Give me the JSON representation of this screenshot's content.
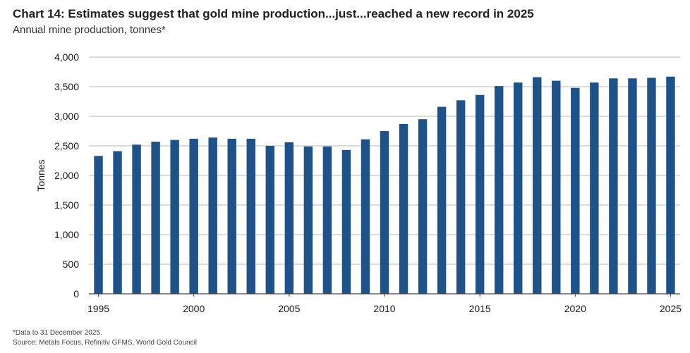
{
  "header": {
    "title": "Chart 14: Estimates suggest that gold mine production...just...reached a new record in 2025",
    "subtitle": "Annual mine production, tonnes*"
  },
  "footer": {
    "note": "*Data to 31 December 2025.",
    "source": "Source: Metals Focus, Refinitiv GFMS, World Gold Council"
  },
  "colors": {
    "bar": "#1f5288",
    "grid": "#c8c8c8",
    "axis": "#444444",
    "text": "#1a1a1a"
  },
  "chart_data": {
    "type": "bar",
    "title": "Chart 14: Estimates suggest that gold mine production...just...reached a new record in 2025",
    "subtitle": "Annual mine production, tonnes*",
    "xlabel": "",
    "ylabel": "Tonnes",
    "ylim": [
      0,
      4000
    ],
    "yticks": [
      0,
      500,
      1000,
      1500,
      2000,
      2500,
      3000,
      3500,
      4000
    ],
    "ytick_labels": [
      "0",
      "500",
      "1,000",
      "1,500",
      "2,000",
      "2,500",
      "3,000",
      "3,500",
      "4,000"
    ],
    "xtick_labels": [
      "1995",
      "2000",
      "2005",
      "2010",
      "2015",
      "2020",
      "2025"
    ],
    "grid": true,
    "legend": "none",
    "categories": [
      "1995",
      "1996",
      "1997",
      "1998",
      "1999",
      "2000",
      "2001",
      "2002",
      "2003",
      "2004",
      "2005",
      "2006",
      "2007",
      "2008",
      "2009",
      "2010",
      "2011",
      "2012",
      "2013",
      "2014",
      "2015",
      "2016",
      "2017",
      "2018",
      "2019",
      "2020",
      "2021",
      "2022",
      "2023",
      "2024",
      "2025"
    ],
    "values": [
      2330,
      2410,
      2520,
      2570,
      2600,
      2620,
      2640,
      2620,
      2620,
      2500,
      2560,
      2490,
      2490,
      2430,
      2610,
      2750,
      2870,
      2950,
      3160,
      3270,
      3360,
      3510,
      3570,
      3660,
      3600,
      3480,
      3570,
      3640,
      3640,
      3650,
      3670
    ]
  }
}
